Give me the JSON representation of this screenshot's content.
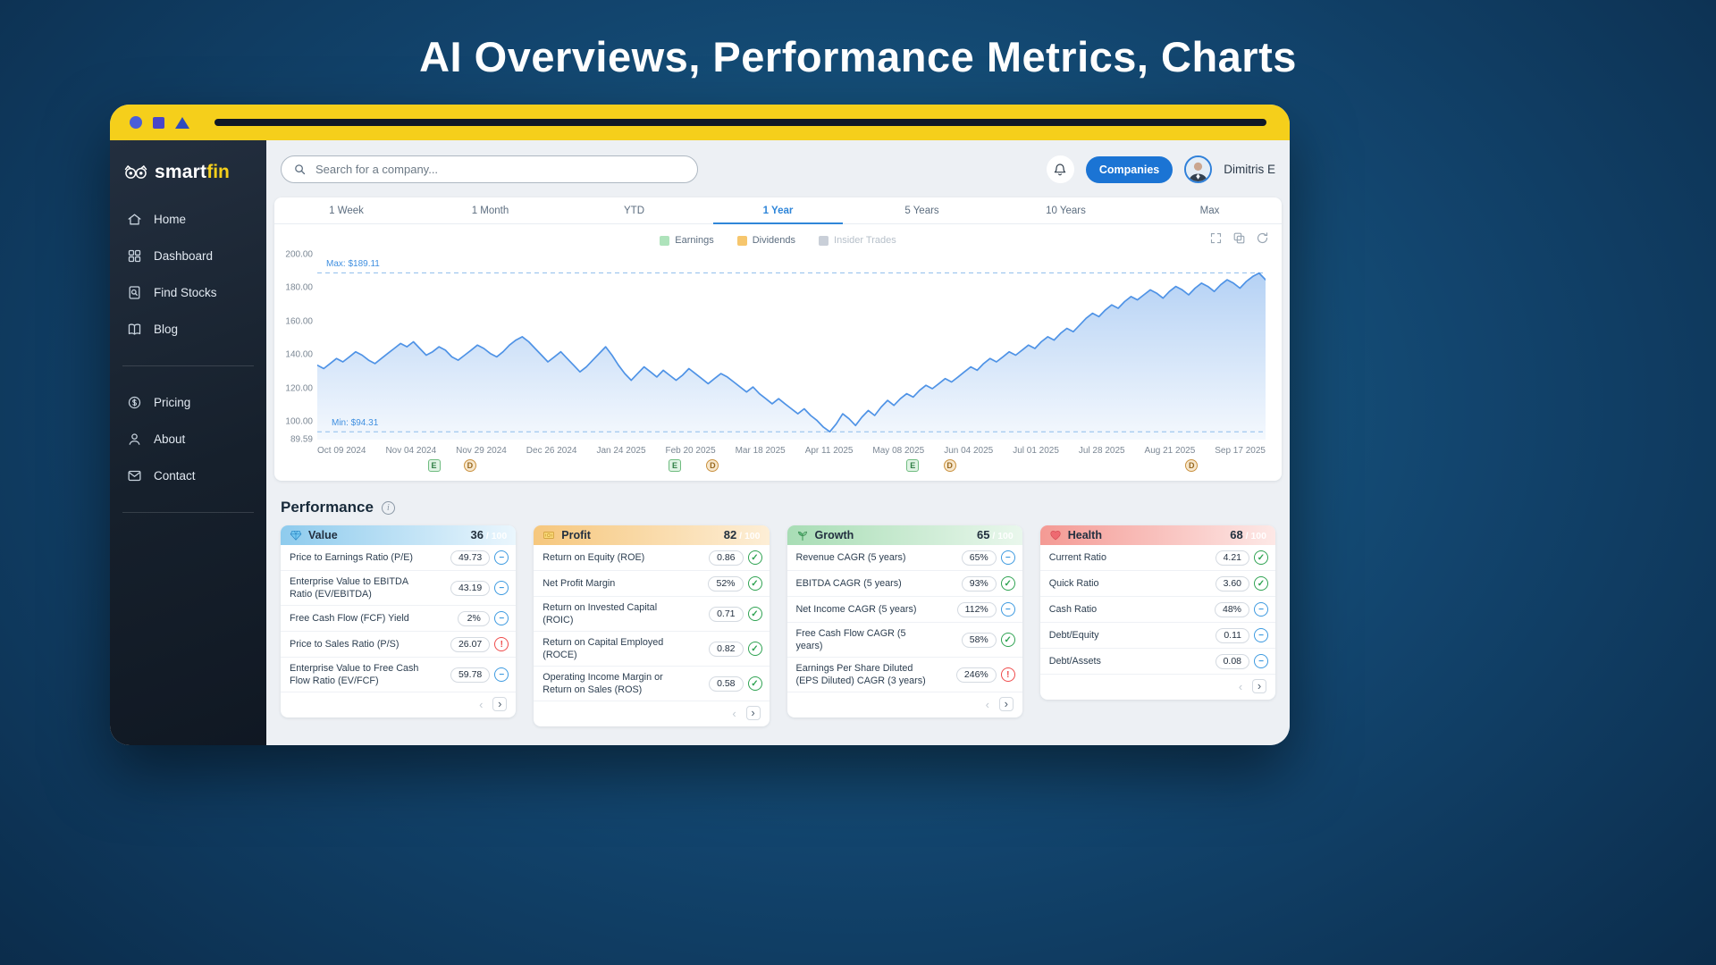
{
  "page": {
    "title": "AI Overviews, Performance Metrics, Charts"
  },
  "theme": {
    "accent": "#1b74d4",
    "brand_yellow": "#f5cf1b",
    "good": "#2fa352",
    "neutral": "#3d9ae0",
    "bad": "#ef4b4b"
  },
  "sidebar": {
    "logo_smart": "smart",
    "logo_fin": "fin",
    "primary_items": [
      {
        "label": "Home",
        "icon": "home-icon"
      },
      {
        "label": "Dashboard",
        "icon": "dashboard-icon"
      },
      {
        "label": "Find Stocks",
        "icon": "find-stocks-icon"
      },
      {
        "label": "Blog",
        "icon": "blog-icon"
      }
    ],
    "secondary_items": [
      {
        "label": "Pricing",
        "icon": "pricing-icon"
      },
      {
        "label": "About",
        "icon": "about-icon"
      },
      {
        "label": "Contact",
        "icon": "contact-icon"
      }
    ]
  },
  "topbar": {
    "search_placeholder": "Search for a company...",
    "companies_label": "Companies",
    "user_name": "Dimitris E"
  },
  "chart": {
    "tabs": [
      "1 Week",
      "1 Month",
      "YTD",
      "1 Year",
      "5 Years",
      "10 Years",
      "Max"
    ],
    "active_tab": "1 Year",
    "legend": [
      {
        "label": "Earnings",
        "color": "#aee3bb",
        "muted": false
      },
      {
        "label": "Dividends",
        "color": "#f6c66d",
        "muted": false
      },
      {
        "label": "Insider Trades",
        "color": "#c9cfd8",
        "muted": true
      }
    ],
    "tools": [
      "expand-icon",
      "layers-icon",
      "refresh-icon"
    ],
    "max_label": "Max: $189.11",
    "min_label": "Min: $94.31",
    "max_value": 189.11,
    "min_value": 94.31,
    "y_axis_top": 200,
    "y_axis_bottom": 89.59,
    "line_color": "#4f93e6",
    "y_ticks": [
      {
        "label": "200.00",
        "value": 200
      },
      {
        "label": "180.00",
        "value": 180
      },
      {
        "label": "160.00",
        "value": 160
      },
      {
        "label": "140.00",
        "value": 140
      },
      {
        "label": "120.00",
        "value": 120
      },
      {
        "label": "100.00",
        "value": 100
      },
      {
        "label": "89.59",
        "value": 89.59
      }
    ],
    "x_ticks": [
      "Oct 09 2024",
      "Nov 04 2024",
      "Nov 29 2024",
      "Dec 26 2024",
      "Jan 24 2025",
      "Feb 20 2025",
      "Mar 18 2025",
      "Apr 11 2025",
      "May 08 2025",
      "Jun 04 2025",
      "Jul 01 2025",
      "Jul 28 2025",
      "Aug 21 2025",
      "Sep 17 2025"
    ],
    "events": [
      {
        "type": "E",
        "x": 0.123
      },
      {
        "type": "D",
        "x": 0.161
      },
      {
        "type": "E",
        "x": 0.377
      },
      {
        "type": "D",
        "x": 0.417
      },
      {
        "type": "E",
        "x": 0.628
      },
      {
        "type": "D",
        "x": 0.667
      },
      {
        "type": "D",
        "x": 0.922
      }
    ],
    "event_styles": {
      "E": {
        "bg": "#e0f3e4",
        "border": "#6fbc80",
        "text": "#2e7d44"
      },
      "D": {
        "bg": "#f7e7cd",
        "border": "#c9913f",
        "text": "#96671e"
      }
    },
    "chart_data": {
      "type": "area",
      "title": "Stock price - 1 Year",
      "x_range": [
        "Oct 09 2024",
        "Sep 17 2025"
      ],
      "ylim": [
        89.59,
        200
      ],
      "max": 189.11,
      "min": 94.31,
      "values": [
        134,
        132,
        135,
        138,
        136,
        139,
        142,
        140,
        137,
        135,
        138,
        141,
        144,
        147,
        145,
        148,
        144,
        140,
        142,
        145,
        143,
        139,
        137,
        140,
        143,
        146,
        144,
        141,
        139,
        142,
        146,
        149,
        151,
        148,
        144,
        140,
        136,
        139,
        142,
        138,
        134,
        130,
        133,
        137,
        141,
        145,
        140,
        134,
        129,
        125,
        129,
        133,
        130,
        127,
        131,
        128,
        125,
        128,
        132,
        129,
        126,
        123,
        126,
        129,
        127,
        124,
        121,
        118,
        121,
        117,
        114,
        111,
        114,
        111,
        108,
        105,
        108,
        104,
        101,
        97,
        94.3,
        99,
        105,
        102,
        98,
        103,
        107,
        104,
        109,
        113,
        110,
        114,
        117,
        115,
        119,
        122,
        120,
        123,
        126,
        124,
        127,
        130,
        133,
        131,
        135,
        138,
        136,
        139,
        142,
        140,
        143,
        146,
        144,
        148,
        151,
        149,
        153,
        156,
        154,
        158,
        162,
        165,
        163,
        167,
        170,
        168,
        172,
        175,
        173,
        176,
        179,
        177,
        174,
        178,
        181,
        179,
        176,
        180,
        183,
        181,
        178,
        182,
        185,
        183,
        180,
        184,
        187,
        189,
        185
      ]
    }
  },
  "performance": {
    "title": "Performance",
    "score_suffix": "/ 100",
    "cards": [
      {
        "name": "Value",
        "icon": "gem-icon",
        "score": "36",
        "header_from": "#8ecbed",
        "header_to": "#eaf6fd",
        "rows": [
          {
            "label": "Price to Earnings Ratio (P/E)",
            "value": "49.73",
            "status": "neutral"
          },
          {
            "label": "Enterprise Value to EBITDA Ratio (EV/EBITDA)",
            "value": "43.19",
            "status": "neutral"
          },
          {
            "label": "Free Cash Flow (FCF) Yield",
            "value": "2%",
            "status": "neutral"
          },
          {
            "label": "Price to Sales Ratio (P/S)",
            "value": "26.07",
            "status": "bad"
          },
          {
            "label": "Enterprise Value to Free Cash Flow Ratio (EV/FCF)",
            "value": "59.78",
            "status": "neutral"
          }
        ]
      },
      {
        "name": "Profit",
        "icon": "money-icon",
        "score": "82",
        "header_from": "#f6c77d",
        "header_to": "#fdeed6",
        "rows": [
          {
            "label": "Return on Equity (ROE)",
            "value": "0.86",
            "status": "good"
          },
          {
            "label": "Net Profit Margin",
            "value": "52%",
            "status": "good"
          },
          {
            "label": "Return on Invested Capital (ROIC)",
            "value": "0.71",
            "status": "good"
          },
          {
            "label": "Return on Capital Employed (ROCE)",
            "value": "0.82",
            "status": "good"
          },
          {
            "label": "Operating Income Margin or Return on Sales (ROS)",
            "value": "0.58",
            "status": "good"
          }
        ]
      },
      {
        "name": "Growth",
        "icon": "plant-icon",
        "score": "65",
        "header_from": "#a8ddb5",
        "header_to": "#e9f7ec",
        "rows": [
          {
            "label": "Revenue CAGR (5 years)",
            "value": "65%",
            "status": "neutral"
          },
          {
            "label": "EBITDA CAGR (5 years)",
            "value": "93%",
            "status": "good"
          },
          {
            "label": "Net Income CAGR (5 years)",
            "value": "112%",
            "status": "neutral"
          },
          {
            "label": "Free Cash Flow CAGR (5 years)",
            "value": "58%",
            "status": "good"
          },
          {
            "label": "Earnings Per Share Diluted (EPS Diluted) CAGR (3 years)",
            "value": "246%",
            "status": "bad"
          }
        ]
      },
      {
        "name": "Health",
        "icon": "heart-icon",
        "score": "68",
        "header_from": "#f49a94",
        "header_to": "#fde8e6",
        "rows": [
          {
            "label": "Current Ratio",
            "value": "4.21",
            "status": "good"
          },
          {
            "label": "Quick Ratio",
            "value": "3.60",
            "status": "good"
          },
          {
            "label": "Cash Ratio",
            "value": "48%",
            "status": "neutral"
          },
          {
            "label": "Debt/Equity",
            "value": "0.11",
            "status": "neutral"
          },
          {
            "label": "Debt/Assets",
            "value": "0.08",
            "status": "neutral"
          }
        ]
      }
    ]
  }
}
